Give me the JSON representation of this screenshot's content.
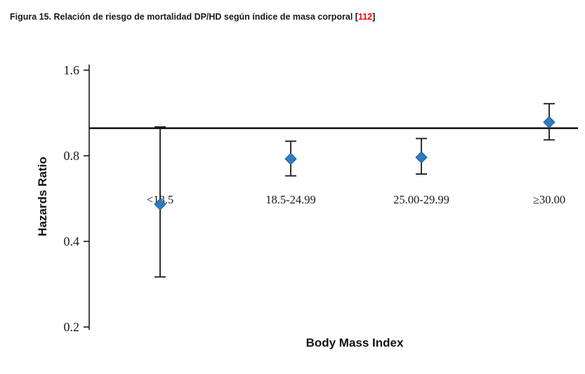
{
  "caption": {
    "text": "Figura 15. Relación de riesgo de mortalidad DP/HD según índice de masa corporal ",
    "bracket_open": "[",
    "ref": "112",
    "bracket_close": "]",
    "ref_color": "#ff0000"
  },
  "chart_data": {
    "type": "scatter",
    "subtype": "point-estimates-with-error-bars",
    "title": "",
    "xlabel": "Body Mass Index",
    "ylabel": "Hazards Ratio",
    "y_scale": "log2",
    "y_ticks": [
      "1.6",
      "0.8",
      "0.4",
      "0.2"
    ],
    "y_tick_values": [
      1.6,
      0.8,
      0.4,
      0.2
    ],
    "ylim": [
      0.2,
      1.6
    ],
    "reference_line": 1.0,
    "grid": "off",
    "legend": "none",
    "categories": [
      "<18.5",
      "18.5-24.99",
      "25.00-29.99",
      "≥30.00"
    ],
    "points": [
      {
        "category": "<18.5",
        "hr": 0.54,
        "ci_low": 0.3,
        "ci_high": 1.01
      },
      {
        "category": "18.5-24.99",
        "hr": 0.78,
        "ci_low": 0.68,
        "ci_high": 0.9
      },
      {
        "category": "25.00-29.99",
        "hr": 0.79,
        "ci_low": 0.69,
        "ci_high": 0.92
      },
      {
        "category": "≥30.00",
        "hr": 1.05,
        "ci_low": 0.91,
        "ci_high": 1.22
      }
    ],
    "marker_color": "#2d7cc1",
    "marker_edge_color": "#1e5f99",
    "line_color": "#1a1a1a"
  }
}
